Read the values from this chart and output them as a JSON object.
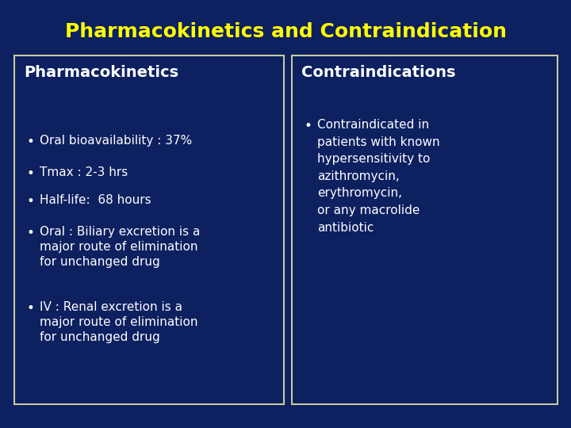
{
  "title": "Pharmacokinetics and Contraindication",
  "title_color": "#FFFF00",
  "background_color": "#0d2060",
  "box_bg_color": "#0d2060",
  "box_border_color": "#c8c8a0",
  "text_color": "#FFFFFF",
  "left_header": "Pharmacokinetics",
  "right_header": "Contraindications",
  "header_color": "#FFFFFF",
  "left_bullets": [
    "Oral bioavailability : 37%",
    "Tmax : 2-3 hrs",
    "Half-life:  68 hours",
    "Oral : Biliary excretion is a\nmajor route of elimination\nfor unchanged drug",
    "IV : Renal excretion is a\nmajor route of elimination\nfor unchanged drug"
  ],
  "right_bullets": [
    "Contraindicated in\npatients with known\nhypersensitivity to\nazithromycin,\nerythromycin,\nor any macrolide\nantibiotic"
  ],
  "title_fontsize": 18,
  "header_fontsize": 14,
  "bullet_fontsize": 11,
  "bullet_indent": 0.025,
  "bullet_text_indent": 0.055
}
